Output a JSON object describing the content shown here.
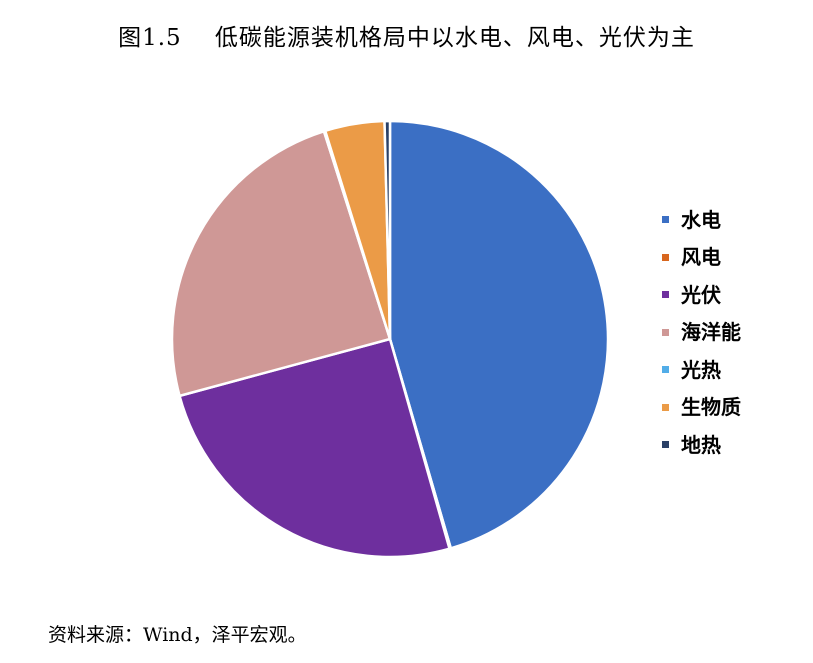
{
  "chart_data": {
    "type": "pie",
    "title": "图1.5    低碳能源装机格局中以水电、风电、光伏为主",
    "legend_position": "right",
    "slices": [
      {
        "label": "水电",
        "value": 45.5,
        "color": "#3B6FC4"
      },
      {
        "label": "风电",
        "value": 0.1,
        "color": "#D8661E"
      },
      {
        "label": "光伏",
        "value": 25.2,
        "color": "#6E2F9E"
      },
      {
        "label": "海洋能",
        "value": 24.3,
        "color": "#CF9896"
      },
      {
        "label": "光热",
        "value": 0.1,
        "color": "#52ADE8"
      },
      {
        "label": "生物质",
        "value": 4.4,
        "color": "#EB9B47"
      },
      {
        "label": "地热",
        "value": 0.4,
        "color": "#2A4066"
      }
    ]
  },
  "source_note": "资料来源：Wind，泽平宏观。"
}
